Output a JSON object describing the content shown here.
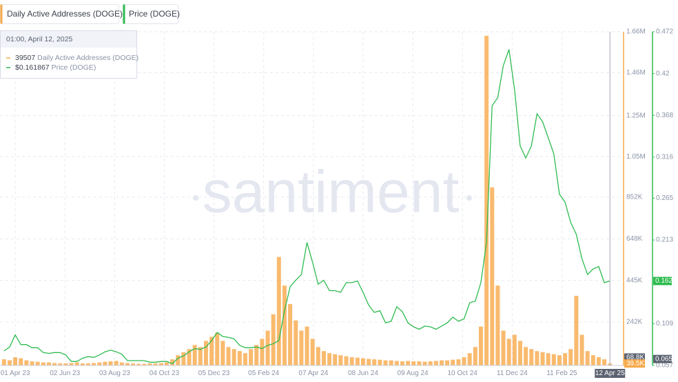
{
  "chart_data": {
    "type": "bar-line",
    "watermark": "santiment",
    "tooltip": {
      "time": "01:00, April 12, 2025",
      "items": [
        {
          "series": 0,
          "value": 39507
        },
        {
          "series": 1,
          "value": 0.161867,
          "value_label": "$0.161867"
        }
      ]
    },
    "crosshair_x": "2025-04-12",
    "x": [
      "2023-03-18",
      "2023-03-25",
      "2023-04-01",
      "2023-04-08",
      "2023-04-15",
      "2023-04-22",
      "2023-04-29",
      "2023-05-06",
      "2023-05-13",
      "2023-05-20",
      "2023-05-27",
      "2023-06-03",
      "2023-06-10",
      "2023-06-17",
      "2023-06-24",
      "2023-07-01",
      "2023-07-08",
      "2023-07-15",
      "2023-07-22",
      "2023-07-29",
      "2023-08-05",
      "2023-08-12",
      "2023-08-19",
      "2023-08-26",
      "2023-09-02",
      "2023-09-09",
      "2023-09-16",
      "2023-09-23",
      "2023-09-30",
      "2023-10-07",
      "2023-10-14",
      "2023-10-21",
      "2023-10-28",
      "2023-11-04",
      "2023-11-11",
      "2023-11-18",
      "2023-11-25",
      "2023-12-02",
      "2023-12-09",
      "2023-12-16",
      "2023-12-23",
      "2023-12-30",
      "2024-01-06",
      "2024-01-13",
      "2024-01-20",
      "2024-01-27",
      "2024-02-03",
      "2024-02-10",
      "2024-02-17",
      "2024-02-24",
      "2024-03-02",
      "2024-03-09",
      "2024-03-16",
      "2024-03-23",
      "2024-03-30",
      "2024-04-06",
      "2024-04-13",
      "2024-04-20",
      "2024-04-27",
      "2024-05-04",
      "2024-05-11",
      "2024-05-18",
      "2024-05-25",
      "2024-06-01",
      "2024-06-08",
      "2024-06-15",
      "2024-06-22",
      "2024-06-29",
      "2024-07-06",
      "2024-07-13",
      "2024-07-20",
      "2024-07-27",
      "2024-08-03",
      "2024-08-10",
      "2024-08-17",
      "2024-08-24",
      "2024-08-31",
      "2024-09-07",
      "2024-09-14",
      "2024-09-21",
      "2024-09-28",
      "2024-10-05",
      "2024-10-12",
      "2024-10-19",
      "2024-10-26",
      "2024-11-02",
      "2024-11-09",
      "2024-11-16",
      "2024-11-23",
      "2024-11-30",
      "2024-12-07",
      "2024-12-14",
      "2024-12-21",
      "2024-12-28",
      "2025-01-04",
      "2025-01-11",
      "2025-01-18",
      "2025-01-25",
      "2025-02-01",
      "2025-02-08",
      "2025-02-15",
      "2025-02-22",
      "2025-03-01",
      "2025-03-08",
      "2025-03-15",
      "2025-03-22",
      "2025-03-29",
      "2025-04-05",
      "2025-04-12"
    ],
    "series": [
      {
        "name": "Daily Active Addresses (DOGE)",
        "color": "#f7a94a",
        "kind": "bar",
        "axis": "y",
        "values": [
          60000,
          55000,
          70000,
          65000,
          55000,
          50000,
          48000,
          45000,
          45000,
          42000,
          40000,
          40000,
          42000,
          45000,
          40000,
          40000,
          42000,
          45000,
          48000,
          50000,
          52000,
          45000,
          42000,
          40000,
          38000,
          38000,
          40000,
          40000,
          42000,
          45000,
          60000,
          80000,
          95000,
          110000,
          130000,
          120000,
          150000,
          170000,
          190000,
          150000,
          120000,
          110000,
          100000,
          90000,
          110000,
          130000,
          160000,
          200000,
          280000,
          560000,
          420000,
          330000,
          250000,
          200000,
          220000,
          160000,
          120000,
          100000,
          90000,
          85000,
          80000,
          75000,
          70000,
          68000,
          65000,
          62000,
          60000,
          58000,
          55000,
          55000,
          52000,
          50000,
          52000,
          50000,
          50000,
          48000,
          50000,
          52000,
          55000,
          55000,
          58000,
          60000,
          70000,
          90000,
          120000,
          220000,
          1640000,
          900000,
          420000,
          200000,
          160000,
          180000,
          150000,
          120000,
          110000,
          100000,
          95000,
          90000,
          85000,
          80000,
          90000,
          110000,
          370000,
          180000,
          100000,
          80000,
          70000,
          60000,
          39507
        ]
      },
      {
        "name": "Price (DOGE)",
        "color": "#2dbb4f",
        "kind": "line",
        "axis": "y2",
        "values": [
          0.075,
          0.08,
          0.095,
          0.083,
          0.083,
          0.079,
          0.079,
          0.073,
          0.072,
          0.073,
          0.073,
          0.07,
          0.062,
          0.062,
          0.066,
          0.068,
          0.067,
          0.07,
          0.074,
          0.076,
          0.074,
          0.071,
          0.063,
          0.063,
          0.063,
          0.063,
          0.061,
          0.061,
          0.062,
          0.062,
          0.059,
          0.066,
          0.069,
          0.074,
          0.078,
          0.077,
          0.08,
          0.088,
          0.098,
          0.093,
          0.092,
          0.09,
          0.082,
          0.079,
          0.079,
          0.08,
          0.078,
          0.082,
          0.084,
          0.088,
          0.125,
          0.155,
          0.163,
          0.17,
          0.21,
          0.185,
          0.158,
          0.163,
          0.15,
          0.15,
          0.148,
          0.16,
          0.16,
          0.162,
          0.148,
          0.132,
          0.123,
          0.125,
          0.11,
          0.112,
          0.13,
          0.124,
          0.11,
          0.105,
          0.102,
          0.106,
          0.105,
          0.102,
          0.106,
          0.11,
          0.117,
          0.112,
          0.115,
          0.135,
          0.137,
          0.16,
          0.21,
          0.38,
          0.39,
          0.43,
          0.45,
          0.4,
          0.33,
          0.315,
          0.33,
          0.37,
          0.36,
          0.34,
          0.32,
          0.27,
          0.26,
          0.235,
          0.22,
          0.19,
          0.17,
          0.177,
          0.18,
          0.16,
          0.162
        ]
      }
    ],
    "xlim": [
      "2023-03-13",
      "2025-04-29"
    ],
    "xticks": [
      {
        "value": "2023-04-01",
        "label": "01 Apr 23"
      },
      {
        "value": "2023-06-02",
        "label": "02 Jun 23"
      },
      {
        "value": "2023-08-03",
        "label": "03 Aug 23"
      },
      {
        "value": "2023-10-04",
        "label": "04 Oct 23"
      },
      {
        "value": "2023-12-05",
        "label": "05 Dec 23"
      },
      {
        "value": "2024-02-05",
        "label": "05 Feb 24"
      },
      {
        "value": "2024-04-07",
        "label": "07 Apr 24"
      },
      {
        "value": "2024-06-08",
        "label": "08 Jun 24"
      },
      {
        "value": "2024-08-09",
        "label": "09 Aug 24"
      },
      {
        "value": "2024-10-10",
        "label": "10 Oct 24"
      },
      {
        "value": "2024-12-11",
        "label": "11 Dec 24"
      },
      {
        "value": "2025-02-11",
        "label": "11 Feb 25"
      },
      {
        "value": "2025-04-12",
        "label": "12 Apr 25"
      }
    ],
    "ylim": [
      30000,
      1660000
    ],
    "yticks": [
      {
        "value": 242000,
        "label": "242K"
      },
      {
        "value": 445000,
        "label": "445K"
      },
      {
        "value": 648000,
        "label": "648K"
      },
      {
        "value": 852000,
        "label": "852K"
      },
      {
        "value": 1050000,
        "label": "1.05M"
      },
      {
        "value": 1250000,
        "label": "1.25M"
      },
      {
        "value": 1460000,
        "label": "1.46M"
      },
      {
        "value": 1660000,
        "label": "1.66M"
      }
    ],
    "y2lim": [
      0.057,
      0.472
    ],
    "y2ticks": [
      0.057,
      0.109,
      0.213,
      0.265,
      0.316,
      0.368,
      0.42,
      0.472
    ],
    "axis_tags": [
      {
        "axis": "y",
        "value": 68800,
        "label": "68.8K",
        "color": "#5b6270"
      },
      {
        "axis": "y",
        "value": 39500,
        "label": "39.5K",
        "color": "#f7a94a"
      },
      {
        "axis": "y2",
        "value": 0.162,
        "color": "#2dbb4f"
      },
      {
        "axis": "y2",
        "value": 0.065,
        "color": "#5b6270"
      }
    ],
    "grid": true
  }
}
